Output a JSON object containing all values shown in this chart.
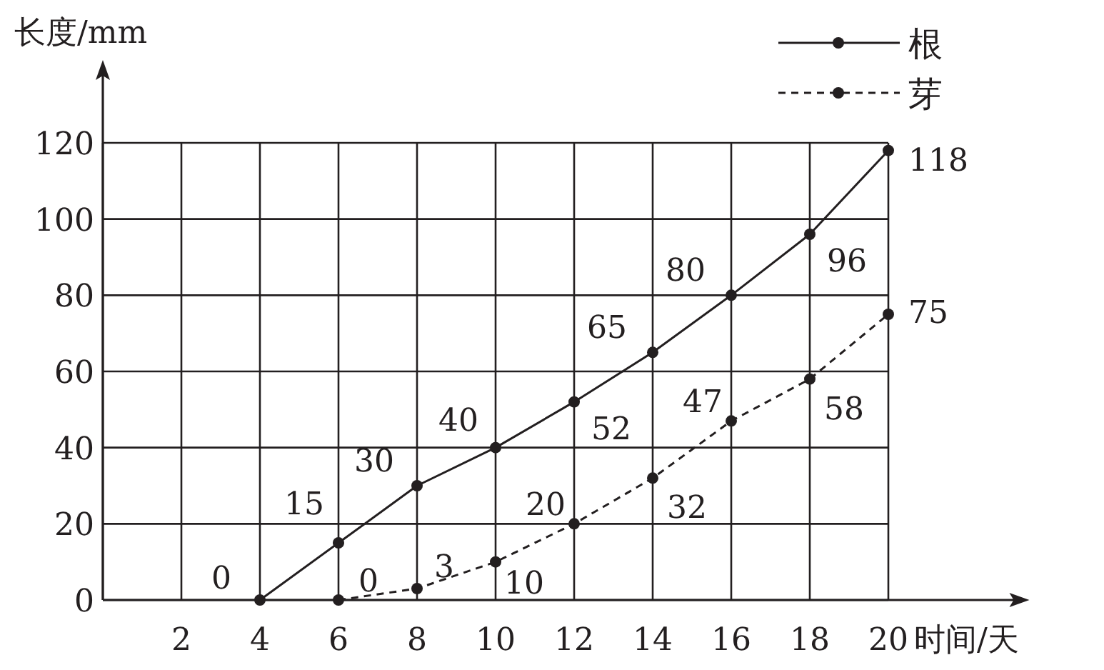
{
  "chart_data": {
    "type": "line",
    "xlabel": "时间/天",
    "ylabel": "长度/mm",
    "xlim": [
      0,
      23.3
    ],
    "ylim": [
      0,
      120
    ],
    "xticks": [
      {
        "value": 0,
        "label": null
      },
      2,
      4,
      6,
      8,
      10,
      12,
      14,
      16,
      18,
      20
    ],
    "yticks": [
      0,
      20,
      40,
      60,
      80,
      100,
      120
    ],
    "grid": true,
    "legend": "top right",
    "marker": "circle",
    "data_labels": true,
    "series": [
      {
        "name": "根",
        "color": "#231f20",
        "line_style": "solid",
        "x": [
          4,
          6,
          8,
          10,
          12,
          14,
          16,
          18,
          20
        ],
        "values": [
          0,
          15,
          30,
          40,
          52,
          65,
          80,
          96,
          118
        ]
      },
      {
        "name": "芽",
        "color": "#231f20",
        "line_style": "dashed",
        "x": [
          6,
          8,
          10,
          12,
          14,
          16,
          18,
          20
        ],
        "values": [
          0,
          3,
          10,
          20,
          32,
          47,
          58,
          75
        ]
      }
    ]
  }
}
